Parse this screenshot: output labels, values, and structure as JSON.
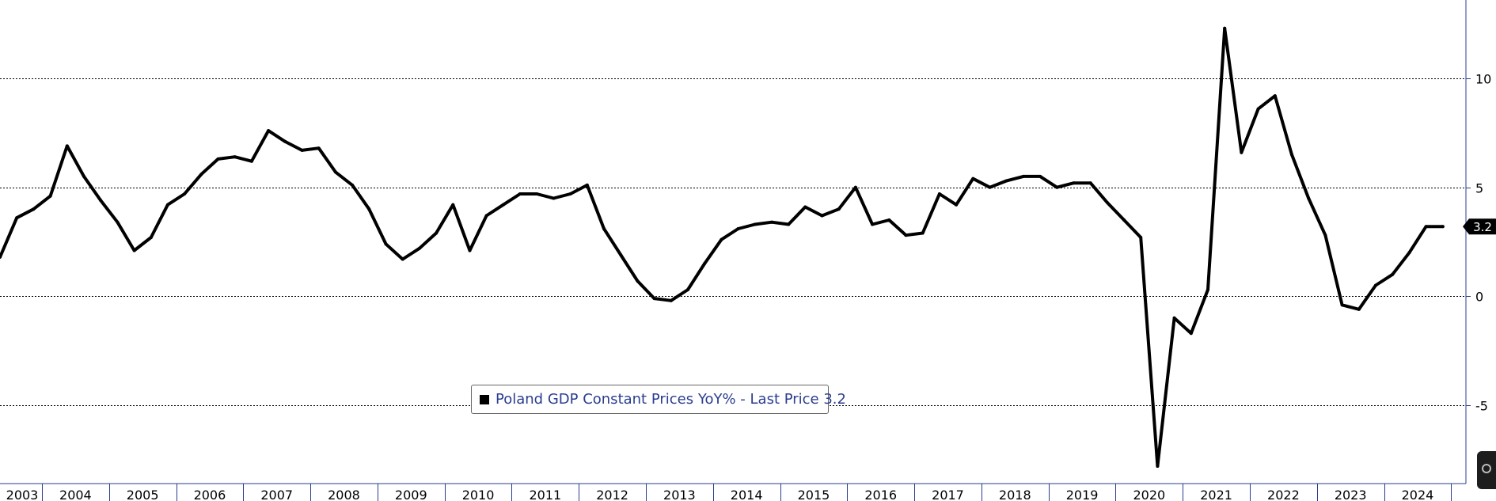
{
  "chart_data": {
    "type": "line",
    "series": [
      {
        "name": "Poland GDP Constant Prices YoY%",
        "color": "#000000",
        "x": [
          2002.875,
          2003.125,
          2003.375,
          2003.625,
          2003.875,
          2004.125,
          2004.375,
          2004.625,
          2004.875,
          2005.125,
          2005.375,
          2005.625,
          2005.875,
          2006.125,
          2006.375,
          2006.625,
          2006.875,
          2007.125,
          2007.375,
          2007.625,
          2007.875,
          2008.125,
          2008.375,
          2008.625,
          2008.875,
          2009.125,
          2009.375,
          2009.625,
          2009.875,
          2010.125,
          2010.375,
          2010.625,
          2010.875,
          2011.125,
          2011.375,
          2011.625,
          2011.875,
          2012.125,
          2012.375,
          2012.625,
          2012.875,
          2013.125,
          2013.375,
          2013.625,
          2013.875,
          2014.125,
          2014.375,
          2014.625,
          2014.875,
          2015.125,
          2015.375,
          2015.625,
          2015.875,
          2016.125,
          2016.375,
          2016.625,
          2016.875,
          2017.125,
          2017.375,
          2017.625,
          2017.875,
          2018.125,
          2018.375,
          2018.625,
          2018.875,
          2019.125,
          2019.375,
          2019.625,
          2019.875,
          2020.125,
          2020.375,
          2020.625,
          2020.875,
          2021.125,
          2021.375,
          2021.625,
          2021.875,
          2022.125,
          2022.375,
          2022.625,
          2022.875,
          2023.125,
          2023.375,
          2023.625,
          2023.875,
          2024.125,
          2024.375
        ],
        "values": [
          1.8,
          3.6,
          4.0,
          4.6,
          6.9,
          5.5,
          4.4,
          3.4,
          2.1,
          2.7,
          4.2,
          4.7,
          5.6,
          6.3,
          6.4,
          6.2,
          7.6,
          7.1,
          6.7,
          6.8,
          5.7,
          5.1,
          4.0,
          2.4,
          1.7,
          2.2,
          2.9,
          4.2,
          2.1,
          3.7,
          4.2,
          4.7,
          4.7,
          4.5,
          4.7,
          5.1,
          3.1,
          1.9,
          0.7,
          -0.1,
          -0.2,
          0.3,
          1.5,
          2.6,
          3.1,
          3.3,
          3.4,
          3.3,
          4.1,
          3.7,
          4.0,
          5.0,
          3.3,
          3.5,
          2.8,
          2.9,
          4.7,
          4.2,
          5.4,
          5.0,
          5.3,
          5.5,
          5.5,
          5.0,
          5.2,
          5.2,
          4.3,
          3.5,
          2.7,
          -7.8,
          -1.0,
          -1.7,
          0.3,
          12.3,
          6.6,
          8.6,
          9.2,
          6.5,
          4.5,
          2.8,
          -0.4,
          -0.6,
          0.5,
          1.0,
          2.0,
          3.2,
          3.2
        ],
        "last_price": 3.2
      }
    ],
    "x_ticks": [
      "2003",
      "2004",
      "2005",
      "2006",
      "2007",
      "2008",
      "2009",
      "2010",
      "2011",
      "2012",
      "2013",
      "2014",
      "2015",
      "2016",
      "2017",
      "2018",
      "2019",
      "2020",
      "2021",
      "2022",
      "2023",
      "2024"
    ],
    "y_ticks": [
      10,
      5,
      0,
      -5
    ],
    "xlim": [
      2002.875,
      2024.72
    ],
    "ylim": [
      -8.6,
      13.6
    ],
    "grid": true,
    "legend_position": "bottom-center",
    "title": "",
    "xlabel": "",
    "ylabel": ""
  },
  "legend": {
    "label": "Poland GDP Constant Prices YoY% - Last Price 3.2"
  },
  "last_price_label": "3.2",
  "colors": {
    "line": "#000000",
    "grid": "#000000",
    "legend_text": "#2a3d8f",
    "axis": "#2a3d8f"
  }
}
